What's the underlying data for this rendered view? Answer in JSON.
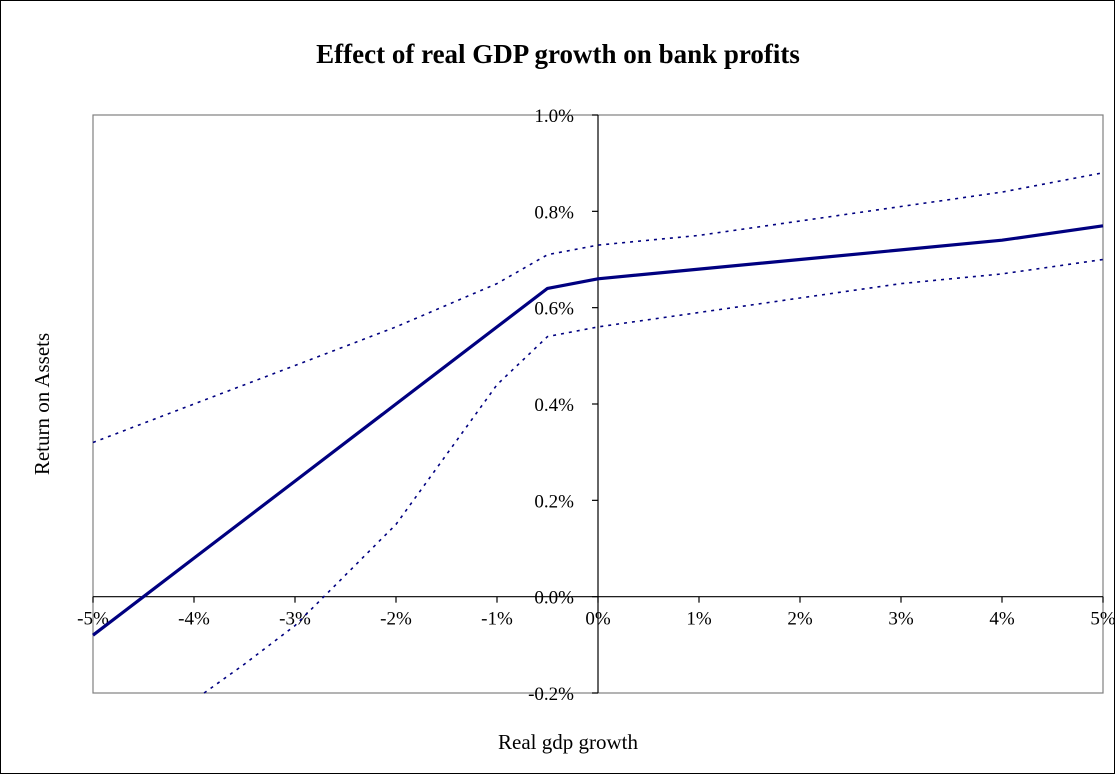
{
  "chart_data": {
    "type": "line",
    "title": "Effect of real GDP growth on bank profits",
    "xlabel": "Real gdp growth",
    "ylabel": "Return on Assets",
    "xlim": [
      -0.05,
      0.05
    ],
    "ylim": [
      -0.002,
      0.01
    ],
    "x_ticks": [
      -0.05,
      -0.04,
      -0.03,
      -0.02,
      -0.01,
      0,
      0.01,
      0.02,
      0.03,
      0.04,
      0.05
    ],
    "x_tick_labels": [
      "-5%",
      "-4%",
      "-3%",
      "-2%",
      "-1%",
      "0%",
      "1%",
      "2%",
      "3%",
      "4%",
      "5%"
    ],
    "y_ticks": [
      -0.002,
      0,
      0.002,
      0.004,
      0.006,
      0.008,
      0.01
    ],
    "y_tick_labels": [
      "-0.2%",
      "0.0%",
      "0.2%",
      "0.4%",
      "0.6%",
      "0.8%",
      "1.0%"
    ],
    "grid": false,
    "legend": "none",
    "series": [
      {
        "style": "solid",
        "color": "#000080",
        "points": [
          [
            -0.05,
            -0.0008
          ],
          [
            -0.045,
            0.0
          ],
          [
            -0.04,
            0.0008
          ],
          [
            -0.03,
            0.0024
          ],
          [
            -0.02,
            0.004
          ],
          [
            -0.01,
            0.0056
          ],
          [
            -0.005,
            0.0064
          ],
          [
            0,
            0.0066
          ],
          [
            0.01,
            0.0068
          ],
          [
            0.02,
            0.007
          ],
          [
            0.03,
            0.0072
          ],
          [
            0.04,
            0.0074
          ],
          [
            0.05,
            0.0077
          ]
        ]
      },
      {
        "style": "dotted",
        "color": "#000080",
        "points": [
          [
            -0.05,
            0.0032
          ],
          [
            -0.04,
            0.004
          ],
          [
            -0.03,
            0.0048
          ],
          [
            -0.02,
            0.0056
          ],
          [
            -0.01,
            0.0065
          ],
          [
            -0.005,
            0.0071
          ],
          [
            0,
            0.0073
          ],
          [
            0.01,
            0.0075
          ],
          [
            0.02,
            0.0078
          ],
          [
            0.03,
            0.0081
          ],
          [
            0.04,
            0.0084
          ],
          [
            0.05,
            0.0088
          ]
        ]
      },
      {
        "style": "dotted",
        "color": "#000080",
        "points": [
          [
            -0.039,
            -0.002
          ],
          [
            -0.035,
            -0.0014
          ],
          [
            -0.03,
            -0.0006
          ],
          [
            -0.02,
            0.0015
          ],
          [
            -0.01,
            0.0044
          ],
          [
            -0.005,
            0.0054
          ],
          [
            0,
            0.0056
          ],
          [
            0.01,
            0.0059
          ],
          [
            0.02,
            0.0062
          ],
          [
            0.03,
            0.0065
          ],
          [
            0.04,
            0.0067
          ],
          [
            0.05,
            0.007
          ]
        ]
      }
    ]
  }
}
